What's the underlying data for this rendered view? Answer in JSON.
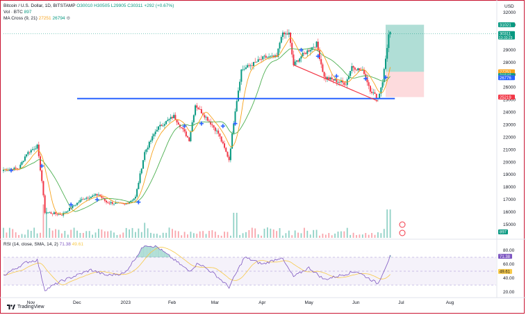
{
  "legend": {
    "pair": "Bitcoin / U.S. Dollar, 1D, BITSTAMP",
    "ohlc": "O30010 H30505 L29905 C30311 +292 (+0.67%)",
    "vol_label": "Vol · BTC",
    "vol_value": "897",
    "ma_label": "MA Cross (9, 21)",
    "ma_fast": "27251",
    "ma_slow": "26794"
  },
  "rsi": {
    "label": "RSI (14, close, SMA, 14, 2)",
    "rsi_value": "71.38",
    "ma_value": "49.61",
    "levels": [
      80,
      70,
      60,
      50,
      40,
      30,
      20
    ],
    "tick_labels": [
      "80.00",
      "60.00",
      "40.00",
      "20.00"
    ],
    "badges": [
      {
        "text": "71.38",
        "value": 71.38,
        "bg": "#7e57c2",
        "color": "#ffffff"
      },
      {
        "text": "49.61",
        "value": 49.61,
        "bg": "#f7c948",
        "color": "#131722"
      }
    ]
  },
  "brand": "TradingView",
  "colors": {
    "up": "#089981",
    "down": "#f23645",
    "ma_fast": "#f7a21b",
    "ma_slow": "#4caf50",
    "support": "#2962ff",
    "trend": "#f23645",
    "rsi": "#7e57c2",
    "rsi_ma": "#f7c948"
  },
  "chart_data": {
    "type": "candlestick",
    "price_axis_label": "USD",
    "price_ticks": [
      32000,
      31000,
      29000,
      28000,
      27000,
      26000,
      25000,
      24000,
      23000,
      22000,
      21000,
      20000,
      19000,
      18000,
      17000,
      16000,
      15000
    ],
    "time_labels": [
      {
        "text": "Nov",
        "date": "2022-11-01"
      },
      {
        "text": "Dec",
        "date": "2022-12-01"
      },
      {
        "text": "2023",
        "date": "2023-01-01"
      },
      {
        "text": "Feb",
        "date": "2023-02-01"
      },
      {
        "text": "Mar",
        "date": "2023-03-01"
      },
      {
        "text": "Apr",
        "date": "2023-04-01"
      },
      {
        "text": "May",
        "date": "2023-05-01"
      },
      {
        "text": "Jun",
        "date": "2023-06-01"
      },
      {
        "text": "Jul",
        "date": "2023-07-01"
      },
      {
        "text": "Aug",
        "date": "2023-08-01"
      }
    ],
    "price_keypoints": [
      {
        "date": "2022-10-14",
        "price": 19400
      },
      {
        "date": "2022-10-24",
        "price": 19500
      },
      {
        "date": "2022-10-29",
        "price": 20700
      },
      {
        "date": "2022-11-05",
        "price": 21300
      },
      {
        "date": "2022-11-08",
        "price": 18500
      },
      {
        "date": "2022-11-10",
        "price": 16000
      },
      {
        "date": "2022-11-21",
        "price": 15800
      },
      {
        "date": "2022-12-05",
        "price": 17100
      },
      {
        "date": "2022-12-15",
        "price": 17400
      },
      {
        "date": "2022-12-20",
        "price": 16800
      },
      {
        "date": "2023-01-01",
        "price": 16600
      },
      {
        "date": "2023-01-08",
        "price": 17200
      },
      {
        "date": "2023-01-14",
        "price": 20800
      },
      {
        "date": "2023-01-22",
        "price": 22700
      },
      {
        "date": "2023-02-02",
        "price": 23700
      },
      {
        "date": "2023-02-12",
        "price": 21800
      },
      {
        "date": "2023-02-16",
        "price": 24600
      },
      {
        "date": "2023-02-25",
        "price": 23300
      },
      {
        "date": "2023-03-03",
        "price": 22300
      },
      {
        "date": "2023-03-10",
        "price": 20200
      },
      {
        "date": "2023-03-14",
        "price": 24200
      },
      {
        "date": "2023-03-18",
        "price": 27400
      },
      {
        "date": "2023-03-26",
        "price": 27900
      },
      {
        "date": "2023-04-02",
        "price": 28400
      },
      {
        "date": "2023-04-10",
        "price": 28400
      },
      {
        "date": "2023-04-13",
        "price": 30200
      },
      {
        "date": "2023-04-18",
        "price": 30300
      },
      {
        "date": "2023-04-21",
        "price": 27800
      },
      {
        "date": "2023-04-26",
        "price": 28500
      },
      {
        "date": "2023-05-06",
        "price": 29500
      },
      {
        "date": "2023-05-11",
        "price": 26800
      },
      {
        "date": "2023-05-25",
        "price": 26300
      },
      {
        "date": "2023-05-29",
        "price": 27700
      },
      {
        "date": "2023-06-06",
        "price": 27200
      },
      {
        "date": "2023-06-10",
        "price": 25800
      },
      {
        "date": "2023-06-15",
        "price": 25100
      },
      {
        "date": "2023-06-18",
        "price": 26500
      },
      {
        "date": "2023-06-20",
        "price": 28300
      },
      {
        "date": "2023-06-22",
        "price": 30200
      },
      {
        "date": "2023-06-23",
        "price": 30311
      }
    ],
    "support_line": {
      "price": 25100,
      "from": "2022-12-01",
      "to": "2023-06-26"
    },
    "trend_line": {
      "from": {
        "date": "2023-04-21",
        "price": 27800
      },
      "to": {
        "date": "2023-06-15",
        "price": 24900
      }
    },
    "position_tool": {
      "from": "2023-06-20",
      "to": "2023-07-15",
      "target": 31021,
      "entry": 27251,
      "stop": 25219
    },
    "price_badges": [
      {
        "text": "31021",
        "value": 31021,
        "bg": "#089981",
        "color": "#ffffff"
      },
      {
        "text": "30311",
        "sub": "13:33:23",
        "value": 30311,
        "bg": "#089981",
        "color": "#ffffff"
      },
      {
        "text": "27251",
        "value": 27251,
        "bg": "#f7a21b",
        "color": "#ffffff"
      },
      {
        "text": "26940",
        "value": 26940,
        "bg": "#089981",
        "color": "#ffffff"
      },
      {
        "text": "26794",
        "value": 26794,
        "bg": "#4caf50",
        "color": "#ffffff"
      },
      {
        "text": "26776",
        "value": 26776,
        "bg": "#2962ff",
        "color": "#ffffff"
      },
      {
        "text": "25219",
        "value": 25219,
        "bg": "#f23645",
        "color": "#ffffff"
      }
    ],
    "volume_badge": {
      "text": "897",
      "bg": "#089981",
      "color": "#ffffff"
    },
    "volume_spikes": [
      {
        "date": "2022-11-09",
        "rel": 1.0
      },
      {
        "date": "2022-11-10",
        "rel": 0.9
      },
      {
        "date": "2023-01-14",
        "rel": 0.45
      },
      {
        "date": "2023-03-14",
        "rel": 0.75
      },
      {
        "date": "2023-06-22",
        "rel": 0.85
      }
    ],
    "rsi_keypoints": [
      {
        "date": "2022-10-14",
        "value": 44
      },
      {
        "date": "2022-10-29",
        "value": 63
      },
      {
        "date": "2022-11-05",
        "value": 66
      },
      {
        "date": "2022-11-10",
        "value": 23
      },
      {
        "date": "2022-11-20",
        "value": 35
      },
      {
        "date": "2022-12-10",
        "value": 52
      },
      {
        "date": "2022-12-20",
        "value": 44
      },
      {
        "date": "2023-01-01",
        "value": 47
      },
      {
        "date": "2023-01-14",
        "value": 88
      },
      {
        "date": "2023-01-22",
        "value": 85
      },
      {
        "date": "2023-02-12",
        "value": 50
      },
      {
        "date": "2023-02-18",
        "value": 62
      },
      {
        "date": "2023-03-01",
        "value": 45
      },
      {
        "date": "2023-03-10",
        "value": 27
      },
      {
        "date": "2023-03-20",
        "value": 70
      },
      {
        "date": "2023-04-01",
        "value": 60
      },
      {
        "date": "2023-04-13",
        "value": 70
      },
      {
        "date": "2023-04-21",
        "value": 42
      },
      {
        "date": "2023-05-01",
        "value": 55
      },
      {
        "date": "2023-05-11",
        "value": 38
      },
      {
        "date": "2023-06-01",
        "value": 50
      },
      {
        "date": "2023-06-15",
        "value": 32
      },
      {
        "date": "2023-06-23",
        "value": 71.38
      }
    ],
    "crosses": [
      {
        "date": "2022-10-19",
        "price": 19350
      },
      {
        "date": "2022-11-08",
        "price": 19700
      },
      {
        "date": "2022-11-27",
        "price": 16600
      },
      {
        "date": "2022-12-14",
        "price": 17000
      },
      {
        "date": "2023-01-10",
        "price": 16800
      },
      {
        "date": "2023-02-09",
        "price": 22900
      },
      {
        "date": "2023-02-20",
        "price": 23100
      },
      {
        "date": "2023-03-06",
        "price": 22900
      },
      {
        "date": "2023-03-14",
        "price": 23100
      },
      {
        "date": "2023-04-26",
        "price": 29000
      },
      {
        "date": "2023-05-07",
        "price": 28500
      },
      {
        "date": "2023-05-19",
        "price": 26900
      },
      {
        "date": "2023-06-07",
        "price": 26700
      },
      {
        "date": "2023-06-20",
        "price": 26800
      }
    ]
  }
}
